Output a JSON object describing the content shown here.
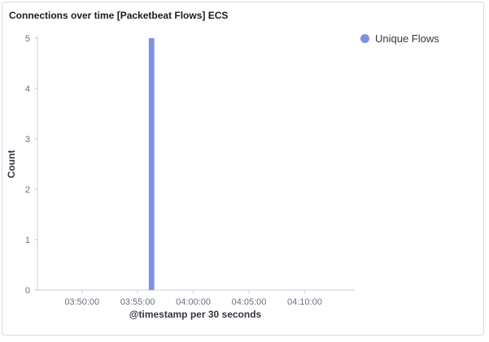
{
  "panel": {
    "title": "Connections over time [Packetbeat Flows] ECS"
  },
  "colors": {
    "series": "#7b93e0",
    "axis": "#c8ccd4",
    "text": "#69707d"
  },
  "chart_data": {
    "type": "bar",
    "title": "Connections over time [Packetbeat Flows] ECS",
    "xlabel": "@timestamp per 30 seconds",
    "ylabel": "Count",
    "x_domain": [
      "03:46:00",
      "04:14:30"
    ],
    "xticks": [
      "03:50:00",
      "03:55:00",
      "04:00:00",
      "04:05:00",
      "04:10:00"
    ],
    "ylim": [
      0,
      5
    ],
    "yticks": [
      0,
      1,
      2,
      3,
      4,
      5
    ],
    "grid": false,
    "legend_position": "top-right",
    "series": [
      {
        "name": "Unique Flows",
        "color": "#7b93e0",
        "points": [
          {
            "x": "03:56:00",
            "y": 5
          }
        ]
      }
    ]
  }
}
